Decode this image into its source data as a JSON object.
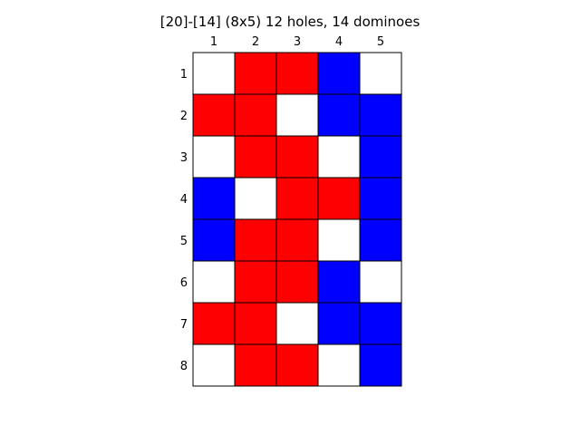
{
  "title": "[20]-[14]  (8x5) 12 holes, 14 dominoes",
  "colors": {
    "red": "#ff0000",
    "blue": "#0000ff",
    "white": "#ffffff",
    "border": "#000000"
  },
  "chart_data": {
    "type": "heatmap",
    "title": "[20]-[14]  (8x5) 12 holes, 14 dominoes",
    "columns": [
      "1",
      "2",
      "3",
      "4",
      "5"
    ],
    "rows": [
      "1",
      "2",
      "3",
      "4",
      "5",
      "6",
      "7",
      "8"
    ],
    "legend": [],
    "grid": [
      [
        "white",
        "red",
        "red",
        "blue",
        "white"
      ],
      [
        "red",
        "red",
        "white",
        "blue",
        "blue"
      ],
      [
        "white",
        "red",
        "red",
        "white",
        "blue"
      ],
      [
        "blue",
        "white",
        "red",
        "red",
        "blue"
      ],
      [
        "blue",
        "red",
        "red",
        "white",
        "blue"
      ],
      [
        "white",
        "red",
        "red",
        "blue",
        "white"
      ],
      [
        "red",
        "red",
        "white",
        "blue",
        "blue"
      ],
      [
        "white",
        "red",
        "red",
        "white",
        "blue"
      ]
    ]
  }
}
